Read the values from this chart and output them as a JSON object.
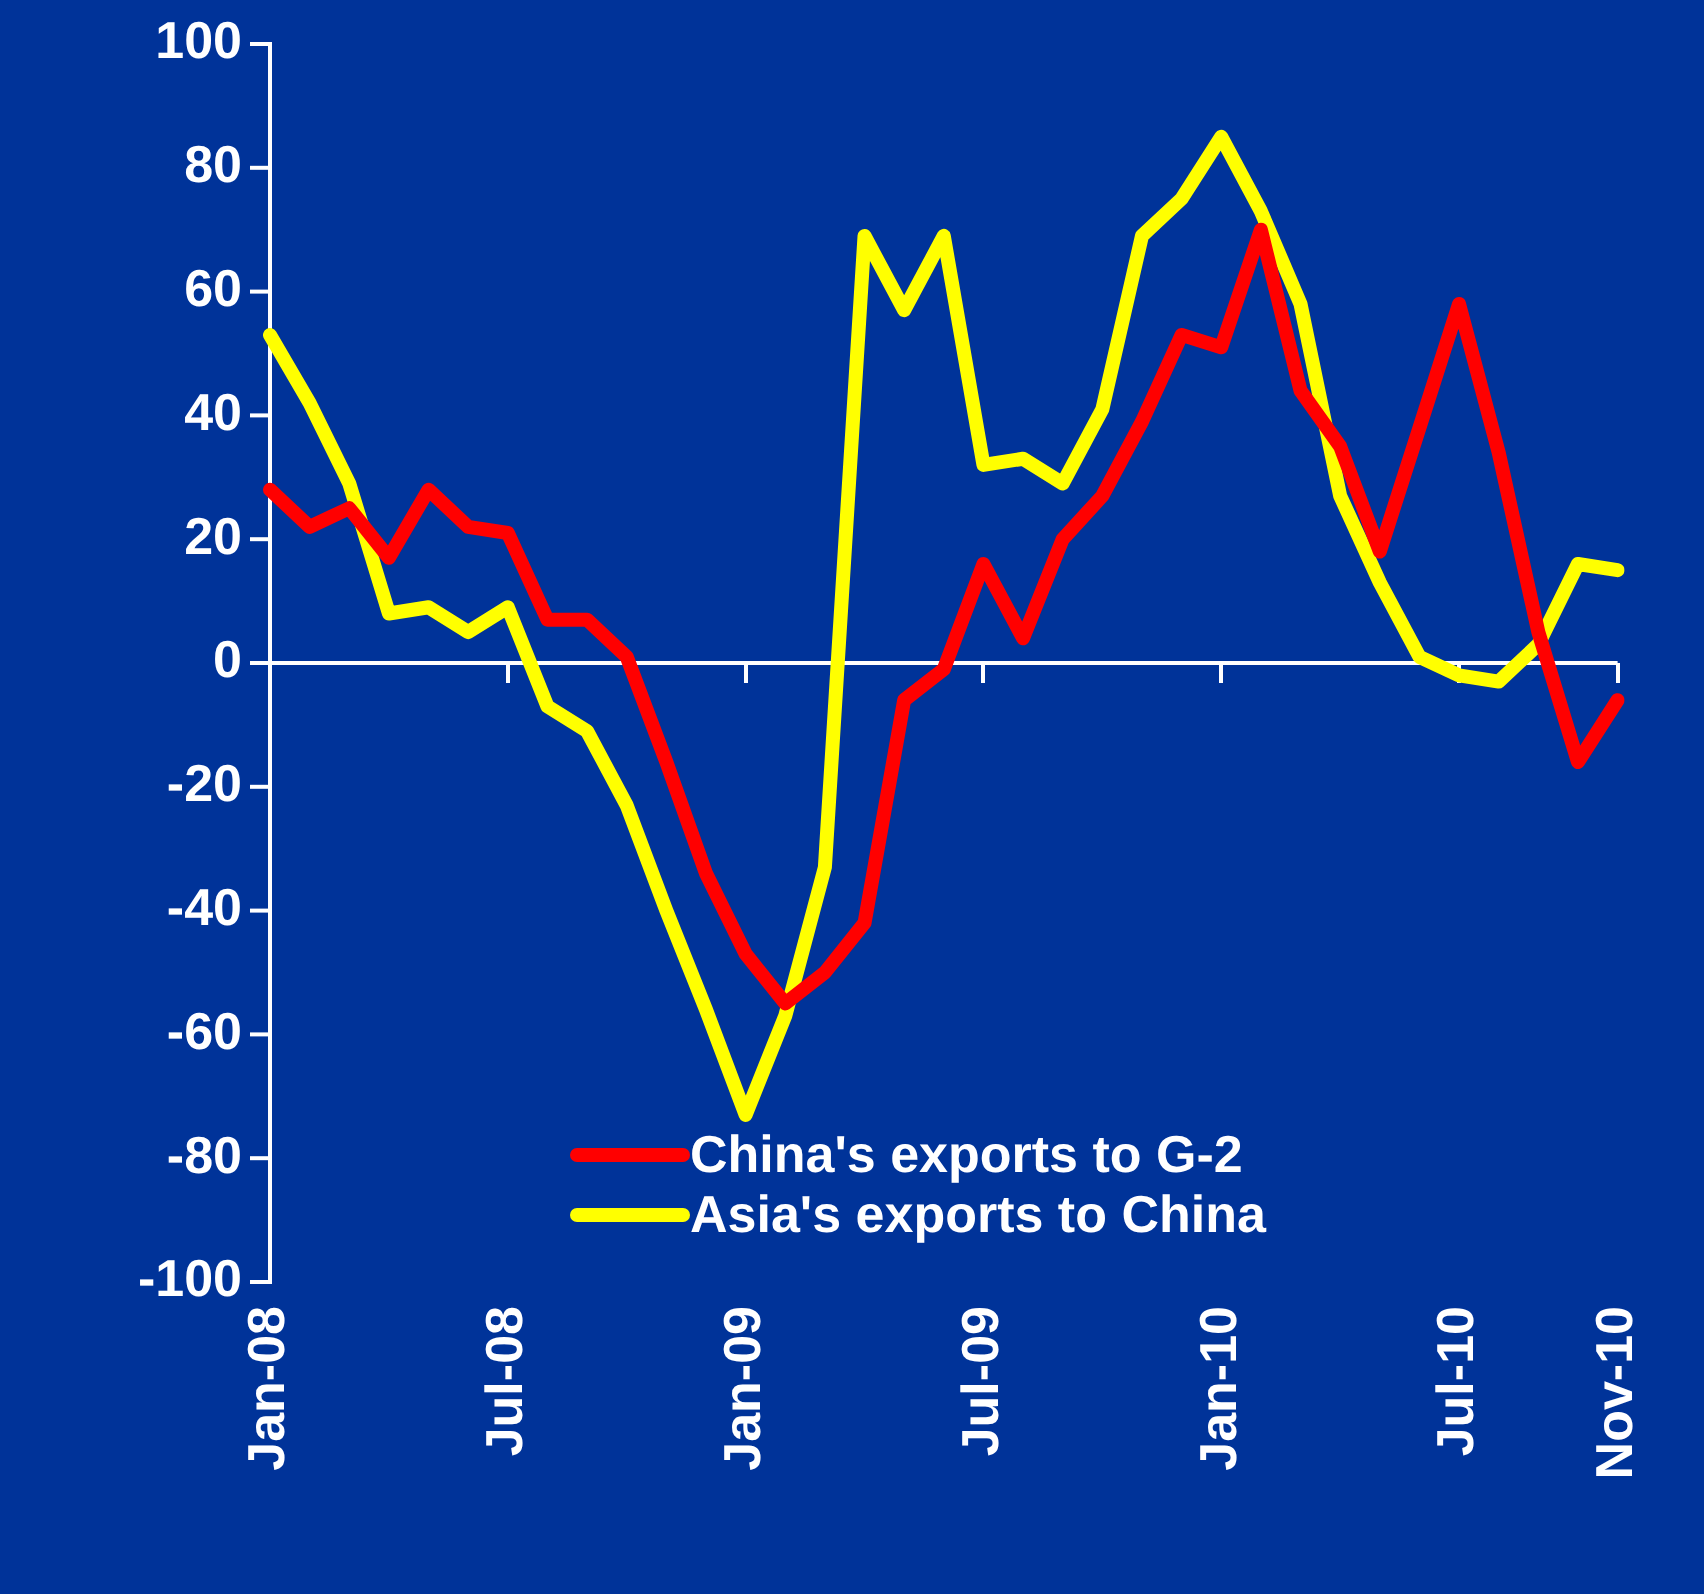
{
  "chart_data": {
    "type": "line",
    "categories": [
      "Jan-08",
      null,
      null,
      null,
      null,
      null,
      "Jul-08",
      null,
      null,
      null,
      null,
      null,
      "Jan-09",
      null,
      null,
      null,
      null,
      null,
      "Jul-09",
      null,
      null,
      null,
      null,
      null,
      "Jan-10",
      null,
      null,
      null,
      null,
      null,
      "Jul-10",
      null,
      null,
      null,
      "Nov-10"
    ],
    "series": [
      {
        "name": "China's exports to G-2",
        "color": "#ff0000",
        "values": [
          28,
          22,
          25,
          17,
          28,
          22,
          21,
          7,
          7,
          1,
          -16,
          -34,
          -47,
          -55,
          -50,
          -42,
          -6,
          -1,
          16,
          4,
          20,
          27,
          39,
          53,
          51,
          70,
          44,
          35,
          18,
          38,
          58,
          34,
          5,
          -16,
          -6
        ]
      },
      {
        "name": "Asia's exports to China",
        "color": "#ffff00",
        "values": [
          53,
          42,
          29,
          8,
          9,
          5,
          9,
          -7,
          -11,
          -23,
          -40,
          -56,
          -73,
          -57,
          -33,
          69,
          57,
          69,
          32,
          33,
          29,
          41,
          69,
          75,
          85,
          73,
          58,
          27,
          13,
          1,
          -2,
          -3,
          3,
          16,
          15
        ]
      }
    ],
    "ylim": [
      -100,
      100
    ],
    "yticks": [
      -100,
      -80,
      -60,
      -40,
      -20,
      0,
      20,
      40,
      60,
      80,
      100
    ],
    "ref_lines": [
      {
        "axis": "y",
        "value": 0,
        "color": "#ffffff"
      }
    ],
    "grid": false,
    "legend": "bottom right",
    "marker": "none",
    "line_style": "solid"
  }
}
